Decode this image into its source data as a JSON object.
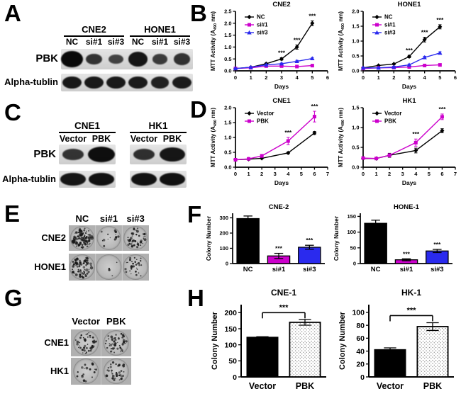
{
  "colors": {
    "black": "#000000",
    "magenta": "#CC00CC",
    "blue": "#2A2AEE"
  },
  "panels": {
    "A": {
      "label": "A",
      "type": "western-blot",
      "groups": [
        {
          "name": "CNE2",
          "lanes": [
            "NC",
            "si#1",
            "si#3"
          ]
        },
        {
          "name": "HONE1",
          "lanes": [
            "NC",
            "si#1",
            "si#3"
          ]
        }
      ],
      "rows": [
        {
          "label": "PBK",
          "band_intensities": [
            1.0,
            0.5,
            0.32,
            0.85,
            0.4,
            0.52
          ]
        },
        {
          "label": "Alpha-tublin",
          "band_intensities": [
            0.82,
            0.8,
            0.8,
            0.8,
            0.72,
            0.78
          ]
        }
      ]
    },
    "B": {
      "label": "B"
    },
    "C": {
      "label": "C",
      "type": "western-blot",
      "groups": [
        {
          "name": "CNE1",
          "lanes": [
            "Vector",
            "PBK"
          ]
        },
        {
          "name": "HK1",
          "lanes": [
            "Vector",
            "PBK"
          ]
        }
      ],
      "rows": [
        {
          "label": "PBK",
          "band_intensities": [
            0.5,
            0.95,
            0.55,
            0.85
          ]
        },
        {
          "label": "Alpha-tublin",
          "band_intensities": [
            0.85,
            0.9,
            0.88,
            0.9
          ]
        }
      ]
    },
    "D": {
      "label": "D"
    },
    "E": {
      "label": "E",
      "type": "colony-assay",
      "column_labels": [
        "NC",
        "si#1",
        "si#3"
      ],
      "rows": [
        {
          "name": "CNE2",
          "colony_density": [
            90,
            14,
            45
          ]
        },
        {
          "name": "HONE1",
          "colony_density": [
            70,
            4,
            30
          ]
        }
      ]
    },
    "F": {
      "label": "F"
    },
    "G": {
      "label": "G",
      "type": "colony-assay",
      "column_labels": [
        "Vector",
        "PBK"
      ],
      "rows": [
        {
          "name": "CNE1",
          "colony_density": [
            45,
            55
          ]
        },
        {
          "name": "HK1",
          "colony_density": [
            18,
            35
          ]
        }
      ]
    },
    "H": {
      "label": "H"
    }
  },
  "chart_data": [
    {
      "id": "B-CNE2",
      "type": "line",
      "title": "CNE2",
      "xlabel": "Days",
      "ylabel_prefix": "MTT Activity (A",
      "ylabel_sub": "490",
      "ylabel_suffix": " nm)",
      "xlim": [
        0,
        6
      ],
      "xticks": [
        0,
        1,
        2,
        3,
        4,
        5,
        6
      ],
      "ylim": [
        0,
        2.5
      ],
      "yticks": [
        0,
        0.5,
        1,
        1.5,
        2,
        2.5
      ],
      "ytick_decimals": 1,
      "x": [
        0,
        1,
        2,
        3,
        4,
        5
      ],
      "legend_position": "top-left",
      "grid": false,
      "series": [
        {
          "name": "NC",
          "color": "#000000",
          "marker": "diamond",
          "values": [
            0.1,
            0.15,
            0.3,
            0.5,
            1.0,
            2.0
          ],
          "errors": [
            0.02,
            0.02,
            0.03,
            0.05,
            0.09,
            0.1
          ]
        },
        {
          "name": "si#1",
          "color": "#CC00CC",
          "marker": "square",
          "values": [
            0.1,
            0.13,
            0.2,
            0.2,
            0.18,
            0.22
          ],
          "errors": [
            0.02,
            0.02,
            0.02,
            0.02,
            0.02,
            0.03
          ]
        },
        {
          "name": "si#3",
          "color": "#2A2AEE",
          "marker": "triangle",
          "values": [
            0.1,
            0.15,
            0.25,
            0.3,
            0.4,
            0.52
          ],
          "errors": [
            0.02,
            0.02,
            0.02,
            0.03,
            0.04,
            0.04
          ]
        }
      ],
      "significance": [
        {
          "x": 3,
          "series": "NC",
          "label": "***"
        },
        {
          "x": 4,
          "series": "NC",
          "label": "***"
        },
        {
          "x": 5,
          "series": "NC",
          "label": "***"
        }
      ]
    },
    {
      "id": "B-HONE1",
      "type": "line",
      "title": "HONE1",
      "xlabel": "Days",
      "ylabel_prefix": "MTT Activity (A",
      "ylabel_sub": "490",
      "ylabel_suffix": " nm)",
      "xlim": [
        0,
        6
      ],
      "xticks": [
        0,
        1,
        2,
        3,
        4,
        5,
        6
      ],
      "ylim": [
        0,
        2.0
      ],
      "yticks": [
        0,
        0.5,
        1,
        1.5,
        2
      ],
      "ytick_decimals": 1,
      "x": [
        0,
        1,
        2,
        3,
        4,
        5
      ],
      "legend_position": "top-left",
      "grid": false,
      "series": [
        {
          "name": "NC",
          "color": "#000000",
          "marker": "diamond",
          "values": [
            0.1,
            0.18,
            0.23,
            0.48,
            1.05,
            1.48
          ],
          "errors": [
            0.02,
            0.02,
            0.02,
            0.04,
            0.08,
            0.07
          ]
        },
        {
          "name": "si#1",
          "color": "#CC00CC",
          "marker": "square",
          "values": [
            0.08,
            0.1,
            0.11,
            0.13,
            0.18,
            0.2
          ],
          "errors": [
            0.02,
            0.02,
            0.02,
            0.02,
            0.02,
            0.03
          ]
        },
        {
          "name": "si#3",
          "color": "#2A2AEE",
          "marker": "triangle",
          "values": [
            0.1,
            0.1,
            0.13,
            0.2,
            0.45,
            0.6
          ],
          "errors": [
            0.02,
            0.02,
            0.02,
            0.03,
            0.04,
            0.04
          ]
        }
      ],
      "significance": [
        {
          "x": 3,
          "series": "NC",
          "label": "***"
        },
        {
          "x": 4,
          "series": "NC",
          "label": "***"
        },
        {
          "x": 5,
          "series": "NC",
          "label": "***"
        }
      ]
    },
    {
      "id": "D-CNE1",
      "type": "line",
      "title": "CNE1",
      "xlabel": "Days",
      "ylabel_prefix": "MTT Activity (A",
      "ylabel_sub": "490",
      "ylabel_suffix": " nm)",
      "xlim": [
        0,
        7
      ],
      "xticks": [
        0,
        1,
        2,
        3,
        4,
        5,
        6,
        7
      ],
      "ylim": [
        0,
        2.0
      ],
      "yticks": [
        0,
        0.5,
        1,
        1.5,
        2
      ],
      "ytick_decimals": 1,
      "x": [
        0,
        1,
        2,
        4,
        6
      ],
      "legend_position": "top-left",
      "grid": false,
      "series": [
        {
          "name": "Vector",
          "color": "#000000",
          "marker": "diamond",
          "values": [
            0.25,
            0.27,
            0.3,
            0.48,
            1.15
          ],
          "errors": [
            0.02,
            0.02,
            0.02,
            0.03,
            0.05
          ]
        },
        {
          "name": "PBK",
          "color": "#CC00CC",
          "marker": "square",
          "values": [
            0.25,
            0.28,
            0.38,
            0.88,
            1.7
          ],
          "errors": [
            0.02,
            0.03,
            0.05,
            0.12,
            0.18
          ]
        }
      ],
      "significance": [
        {
          "x": 4,
          "series": "PBK",
          "label": "***"
        },
        {
          "x": 6,
          "series": "PBK",
          "label": "***"
        }
      ]
    },
    {
      "id": "D-HK1",
      "type": "line",
      "title": "HK1",
      "xlabel": "Days",
      "ylabel_prefix": "MTT Activity (A",
      "ylabel_sub": "490",
      "ylabel_suffix": " nm)",
      "xlim": [
        0,
        7
      ],
      "xticks": [
        0,
        1,
        2,
        3,
        4,
        5,
        6,
        7
      ],
      "ylim": [
        0,
        1.5
      ],
      "yticks": [
        0,
        0.5,
        1,
        1.5
      ],
      "ytick_decimals": 1,
      "x": [
        0,
        1,
        2,
        4,
        6
      ],
      "legend_position": "top-left",
      "grid": false,
      "series": [
        {
          "name": "Vector",
          "color": "#000000",
          "marker": "diamond",
          "values": [
            0.22,
            0.22,
            0.3,
            0.42,
            0.92
          ],
          "errors": [
            0.02,
            0.02,
            0.05,
            0.06,
            0.05
          ]
        },
        {
          "name": "PBK",
          "color": "#CC00CC",
          "marker": "square",
          "values": [
            0.23,
            0.22,
            0.3,
            0.62,
            1.27
          ],
          "errors": [
            0.02,
            0.03,
            0.04,
            0.09,
            0.07
          ]
        }
      ],
      "significance": [
        {
          "x": 4,
          "series": "PBK",
          "label": "***"
        },
        {
          "x": 6,
          "series": "PBK",
          "label": "***"
        }
      ]
    },
    {
      "id": "F-CNE2",
      "type": "bar",
      "style": "compact",
      "title": "CNE-2",
      "ylabel": "Colony Number",
      "categories": [
        "NC",
        "si#1",
        "si#3"
      ],
      "values": [
        295,
        50,
        107
      ],
      "errors": [
        17,
        17,
        13
      ],
      "bar_fills": [
        "#000000",
        "#CC00CC",
        "#2A2AEE"
      ],
      "ylim": [
        0,
        330
      ],
      "yticks": [
        0,
        100,
        200,
        300
      ],
      "ytick_decimals": 0,
      "grid": false,
      "significance": [
        "",
        "***",
        "***"
      ]
    },
    {
      "id": "F-HONE1",
      "type": "bar",
      "style": "compact",
      "title": "HONE-1",
      "ylabel": "Colony Number",
      "categories": [
        "NC",
        "si#1",
        "si#3"
      ],
      "values": [
        128,
        12,
        40
      ],
      "errors": [
        10,
        3,
        5
      ],
      "bar_fills": [
        "#000000",
        "#CC00CC",
        "#2A2AEE"
      ],
      "ylim": [
        0,
        160
      ],
      "yticks": [
        0,
        50,
        100,
        150
      ],
      "ytick_decimals": 0,
      "grid": false,
      "significance": [
        "",
        "***",
        "***"
      ]
    },
    {
      "id": "H-CNE1",
      "type": "bar",
      "style": "large",
      "title": "CNE-1",
      "ylabel": "Colony Number",
      "categories": [
        "Vector",
        "PBK"
      ],
      "values": [
        123,
        170
      ],
      "errors": [
        2,
        9
      ],
      "bar_fills": [
        "#000000",
        "stipple"
      ],
      "ylim": [
        0,
        225
      ],
      "yticks": [
        0,
        50,
        100,
        150,
        200
      ],
      "ytick_decimals": 0,
      "grid": false,
      "bracket": {
        "y": 200,
        "label": "***"
      }
    },
    {
      "id": "H-HK1",
      "type": "bar",
      "style": "large",
      "title": "HK-1",
      "ylabel": "Colony Number",
      "categories": [
        "Vector",
        "PBK"
      ],
      "values": [
        42,
        78
      ],
      "errors": [
        3,
        6
      ],
      "bar_fills": [
        "#000000",
        "stipple"
      ],
      "ylim": [
        0,
        112
      ],
      "yticks": [
        0,
        20,
        40,
        60,
        80,
        100
      ],
      "ytick_decimals": 0,
      "grid": false,
      "bracket": {
        "y": 95,
        "label": "***"
      }
    }
  ]
}
